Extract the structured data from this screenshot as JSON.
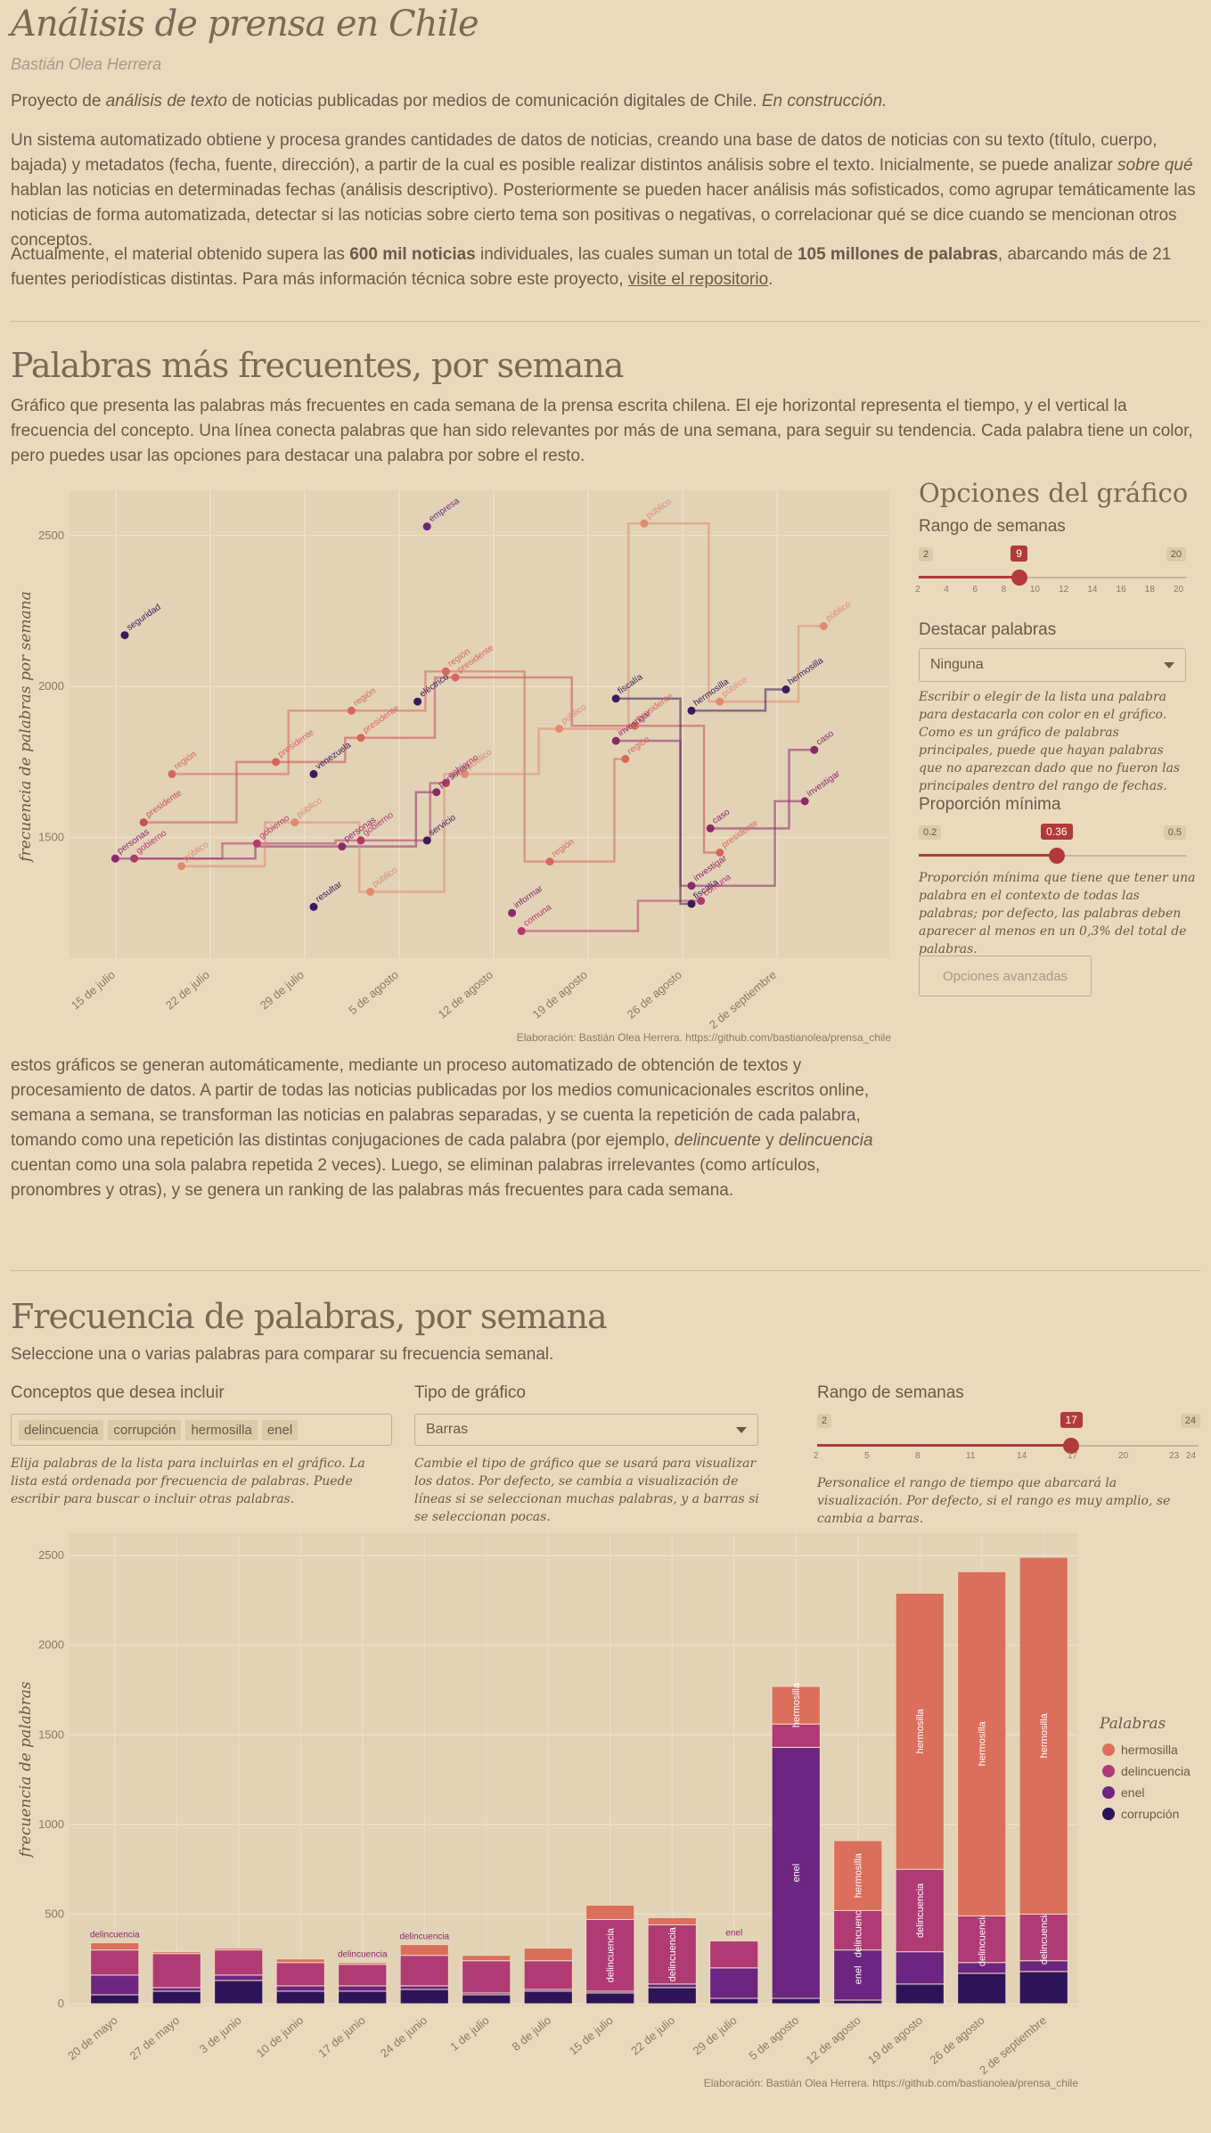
{
  "header": {
    "title": "Análisis de prensa en Chile",
    "author": "Bastián Olea Herrera"
  },
  "intro": {
    "p1_a": "Proyecto de ",
    "p1_b": "análisis de texto",
    "p1_c": " de noticias publicadas por medios de comunicación digitales de Chile. ",
    "p1_d": "En construcción.",
    "p2_a": "Un sistema automatizado obtiene y procesa grandes cantidades de datos de noticias, creando una base de datos de noticias con su texto (título, cuerpo, bajada) y metadatos (fecha, fuente, dirección), a partir de la cual es posible realizar distintos análisis sobre el texto. Inicialmente, se puede analizar ",
    "p2_b": "sobre qué",
    "p2_c": " hablan las noticias en determinadas fechas (análisis descriptivo). Posteriormente se pueden hacer análisis más sofisticados, como agrupar temáticamente las noticias de forma automatizada, detectar si las noticias sobre cierto tema son positivas o negativas, o correlacionar qué se dice cuando se mencionan otros conceptos.",
    "p3_a": "Actualmente, el material obtenido supera las ",
    "p3_b": "600 mil noticias",
    "p3_c": " individuales, las cuales suman un total de ",
    "p3_d": "105 millones de palabras",
    "p3_e": ", abarcando más de 21 fuentes periodísticas distintas. Para más información técnica sobre este proyecto, ",
    "p3_link": "visite el repositorio",
    "p3_f": "."
  },
  "section1": {
    "title": "Palabras más frecuentes, por semana",
    "desc": "Gráfico que presenta las palabras más frecuentes en cada semana de la prensa escrita chilena. El eje horizontal representa el tiempo, y el vertical la frecuencia del concepto. Una línea conecta palabras que han sido relevantes por más de una semana, para seguir su tendencia. Cada palabra tiene un color, pero puedes usar las opciones para destacar una palabra por sobre el resto.",
    "caption": "Elaboración: Bastián Olea Herrera. https://github.com/bastianolea/prensa_chile",
    "after_a": "estos gráficos se generan automáticamente, mediante un proceso automatizado de obtención de textos y procesamiento de datos. A partir de todas las noticias publicadas por los medios comunicacionales escritos online, semana a semana, se transforman las noticias en palabras separadas, y se cuenta la repetición de cada palabra, tomando como una repetición las distintas conjugaciones de cada palabra (por ejemplo, ",
    "after_b": "delincuente",
    "after_c": " y ",
    "after_d": "delincuencia",
    "after_e": " cuentan como una sola palabra repetida 2 veces). Luego, se eliminan palabras irrelevantes (como artículos, pronombres y otras), y se genera un ranking de las palabras más frecuentes para cada semana."
  },
  "options": {
    "title": "Opciones del gráfico",
    "range_label": "Rango de semanas",
    "range_min": "2",
    "range_max": "20",
    "range_value": "9",
    "range_value_num": 9,
    "range_ticks": [
      "2",
      "4",
      "6",
      "8",
      "10",
      "12",
      "14",
      "16",
      "18",
      "20"
    ],
    "highlight_label": "Destacar palabras",
    "highlight_value": "Ninguna",
    "highlight_help": "Escribir o elegir de la lista una palabra para destacarla con color en el gráfico. Como es un gráfico de palabras principales, puede que hayan palabras que no aparezcan dado que no fueron las principales dentro del rango de fechas.",
    "prop_label": "Proporción mínima",
    "prop_min": "0.2",
    "prop_max": "0.5",
    "prop_value": "0.36",
    "prop_value_num": 0.36,
    "prop_help": "Proporción mínima que tiene que tener una palabra en el contexto de todas las palabras; por defecto, las palabras deben aparecer al menos en un 0,3% del total de palabras.",
    "advanced_button": "Opciones avanzadas"
  },
  "section2": {
    "title": "Frecuencia de palabras, por semana",
    "desc": "Seleccione una o varias palabras para comparar su frecuencia semanal.",
    "concepts_label": "Conceptos que desea incluir",
    "concepts": [
      "delincuencia",
      "corrupción",
      "hermosilla",
      "enel"
    ],
    "concepts_help": "Elija palabras de la lista para incluirlas en el gráfico. La lista está ordenada por frecuencia de palabras. Puede escribir para buscar o incluir otras palabras.",
    "type_label": "Tipo de gráfico",
    "type_value": "Barras",
    "type_help": "Cambie el tipo de gráfico que se usará para visualizar los datos. Por defecto, se cambia a visualización de líneas si se seleccionan muchas palabras, y a barras si se seleccionan pocas.",
    "range_label": "Rango de semanas",
    "range_min": "2",
    "range_max": "24",
    "range_value": "17",
    "range_value_num": 17,
    "range_ticks": [
      "2",
      "5",
      "8",
      "11",
      "14",
      "17",
      "20",
      "23",
      "24"
    ],
    "range_help": "Personalice el rango de tiempo que abarcará la visualización. Por defecto, si el rango es muy amplio, se cambia a barras.",
    "caption": "Elaboración: Bastián Olea Herrera. https://github.com/bastianolea/prensa_chile"
  },
  "chart_data": [
    {
      "type": "line",
      "ylabel": "frecuencia de palabras por semana",
      "xlabel": "",
      "ylim": [
        1100,
        2650
      ],
      "yticks": [
        1500,
        2000,
        2500
      ],
      "x_ticks": [
        "15 de julio",
        "22 de julio",
        "29 de julio",
        "5 de agosto",
        "12 de agosto",
        "19 de agosto",
        "26 de agosto",
        "2 de septiembre"
      ],
      "points": [
        {
          "word": "seguridad",
          "week": 0,
          "y": 2170,
          "c": "#3b1a5c"
        },
        {
          "word": "región",
          "week": 0.5,
          "y": 1710,
          "c": "#d9665a"
        },
        {
          "word": "presidente",
          "week": 0.2,
          "y": 1550,
          "c": "#c8505a"
        },
        {
          "word": "personas",
          "week": -0.1,
          "y": 1430,
          "c": "#8a2a6a"
        },
        {
          "word": "gobierno",
          "week": 0.1,
          "y": 1430,
          "c": "#b23a6a"
        },
        {
          "word": "público",
          "week": 0.6,
          "y": 1405,
          "c": "#e08a70"
        },
        {
          "word": "presidente",
          "week": 1.6,
          "y": 1750,
          "c": "#d9665a"
        },
        {
          "word": "público",
          "week": 1.8,
          "y": 1550,
          "c": "#e08a70"
        },
        {
          "word": "gobierno",
          "week": 1.4,
          "y": 1480,
          "c": "#b23a6a"
        },
        {
          "word": "región",
          "week": 2.4,
          "y": 1920,
          "c": "#d9665a"
        },
        {
          "word": "presidente",
          "week": 2.5,
          "y": 1830,
          "c": "#d9665a"
        },
        {
          "word": "venezuela",
          "week": 2.0,
          "y": 1710,
          "c": "#3b1a5c"
        },
        {
          "word": "gobierno",
          "week": 2.5,
          "y": 1490,
          "c": "#b23a6a"
        },
        {
          "word": "personas",
          "week": 2.3,
          "y": 1470,
          "c": "#8a2a6a"
        },
        {
          "word": "resultar",
          "week": 2.0,
          "y": 1270,
          "c": "#3b1a5c"
        },
        {
          "word": "público",
          "week": 2.6,
          "y": 1320,
          "c": "#e08a70"
        },
        {
          "word": "empresa",
          "week": 3.2,
          "y": 2530,
          "c": "#6a2a7a"
        },
        {
          "word": "eléctrico",
          "week": 3.1,
          "y": 1950,
          "c": "#3b1a5c"
        },
        {
          "word": "región",
          "week": 3.4,
          "y": 2050,
          "c": "#d9665a"
        },
        {
          "word": "presidente",
          "week": 3.5,
          "y": 2030,
          "c": "#d9665a"
        },
        {
          "word": "público",
          "week": 3.6,
          "y": 1710,
          "c": "#e08a70"
        },
        {
          "word": "gobierno",
          "week": 3.4,
          "y": 1680,
          "c": "#b23a6a"
        },
        {
          "word": "personas",
          "week": 3.3,
          "y": 1650,
          "c": "#8a2a6a"
        },
        {
          "word": "servicio",
          "week": 3.2,
          "y": 1490,
          "c": "#3b1a5c"
        },
        {
          "word": "informar",
          "week": 4.1,
          "y": 1250,
          "c": "#8a2a6a"
        },
        {
          "word": "comuna",
          "week": 4.2,
          "y": 1190,
          "c": "#b23a6a"
        },
        {
          "word": "región",
          "week": 4.5,
          "y": 1420,
          "c": "#d9665a"
        },
        {
          "word": "público",
          "week": 4.6,
          "y": 1860,
          "c": "#e08a70"
        },
        {
          "word": "fiscalía",
          "week": 5.2,
          "y": 1960,
          "c": "#3b1a5c"
        },
        {
          "word": "presidente",
          "week": 5.4,
          "y": 1870,
          "c": "#d9665a"
        },
        {
          "word": "investigar",
          "week": 5.2,
          "y": 1820,
          "c": "#8a2a6a"
        },
        {
          "word": "región",
          "week": 5.3,
          "y": 1760,
          "c": "#d9665a"
        },
        {
          "word": "público",
          "week": 5.5,
          "y": 2540,
          "c": "#e08a70"
        },
        {
          "word": "hermosilla",
          "week": 6.0,
          "y": 1920,
          "c": "#3b1a5c"
        },
        {
          "word": "público",
          "week": 6.3,
          "y": 1950,
          "c": "#e08a70"
        },
        {
          "word": "caso",
          "week": 6.2,
          "y": 1530,
          "c": "#8a2a6a"
        },
        {
          "word": "presidente",
          "week": 6.3,
          "y": 1450,
          "c": "#d9665a"
        },
        {
          "word": "investigar",
          "week": 6.0,
          "y": 1340,
          "c": "#8a2a6a"
        },
        {
          "word": "fiscalía",
          "week": 6.0,
          "y": 1280,
          "c": "#3b1a5c"
        },
        {
          "word": "comuna",
          "week": 6.1,
          "y": 1290,
          "c": "#b23a6a"
        },
        {
          "word": "hermosilla",
          "week": 7.0,
          "y": 1990,
          "c": "#3b1a5c"
        },
        {
          "word": "público",
          "week": 7.4,
          "y": 2200,
          "c": "#e08a70"
        },
        {
          "word": "caso",
          "week": 7.3,
          "y": 1790,
          "c": "#8a2a6a"
        },
        {
          "word": "investigar",
          "week": 7.2,
          "y": 1620,
          "c": "#8a2a6a"
        }
      ]
    },
    {
      "type": "bar",
      "ylabel": "frecuencia de palabras",
      "xlabel": "",
      "ylim": [
        0,
        2600
      ],
      "yticks": [
        0,
        500,
        1000,
        1500,
        2000,
        2500
      ],
      "legend_title": "Palabras",
      "legend_position": "right",
      "categories": [
        "20 de mayo",
        "27 de mayo",
        "3 de junio",
        "10 de junio",
        "17 de junio",
        "24 de junio",
        "1 de julio",
        "8 de julio",
        "15 de julio",
        "22 de julio",
        "29 de julio",
        "5 de agosto",
        "12 de agosto",
        "19 de agosto",
        "26 de agosto",
        "2 de septiembre"
      ],
      "series": [
        {
          "name": "corrupción",
          "color": "#2d1459",
          "values": [
            50,
            70,
            130,
            70,
            70,
            80,
            50,
            70,
            60,
            90,
            30,
            30,
            20,
            110,
            170,
            180
          ]
        },
        {
          "name": "enel",
          "color": "#6c2580",
          "values": [
            110,
            20,
            30,
            30,
            30,
            20,
            10,
            10,
            10,
            20,
            170,
            1400,
            280,
            180,
            60,
            60
          ]
        },
        {
          "name": "delincuencia",
          "color": "#b03a74",
          "values": [
            140,
            190,
            140,
            130,
            120,
            170,
            180,
            160,
            400,
            330,
            150,
            130,
            220,
            460,
            260,
            260
          ]
        },
        {
          "name": "hermosilla",
          "color": "#dc6e5c",
          "values": [
            40,
            10,
            10,
            20,
            10,
            60,
            30,
            70,
            80,
            40,
            0,
            210,
            390,
            1540,
            1920,
            1990
          ]
        }
      ],
      "top_labels": {
        "0": "delincuencia",
        "4": "delincuencia",
        "5": "delincuencia",
        "10": "enel"
      }
    }
  ]
}
